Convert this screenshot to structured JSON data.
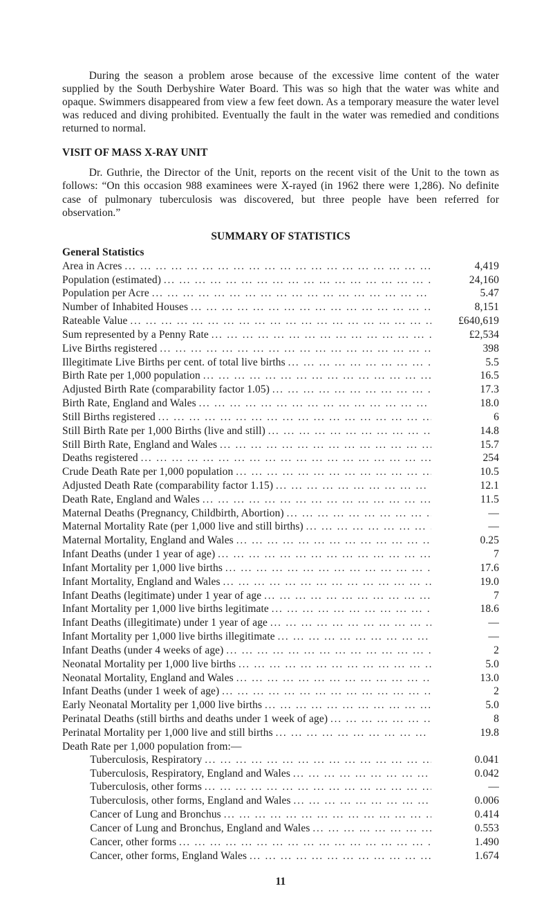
{
  "intro": "During the season a problem arose because of the excessive lime content of the water supplied by the South Derbyshire Water Board. This was so high that the water was white and opaque. Swimmers disappeared from view a few feet down. As a temporary measure the water level was reduced and diving prohibited. Eventually the fault in the water was remedied and conditions returned to normal.",
  "h_visit": "VISIT OF MASS X-RAY UNIT",
  "visit_para": "Dr. Guthrie, the Director of the Unit, reports on the recent visit of the Unit to the town as follows: “On this occasion 988 examinees were X-rayed (in 1962 there were 1,286). No definite case of pulmonary tuberculosis was discovered, but three people have been referred for observation.”",
  "h_summary": "SUMMARY OF STATISTICS",
  "h_general": "General Statistics",
  "deathrate_intro": "Death Rate per 1,000 population from:—",
  "pagenum": "11",
  "rows": [
    {
      "label": "Area in Acres",
      "val": "4,419"
    },
    {
      "label": "Population (estimated)",
      "val": "24,160"
    },
    {
      "label": "Population per Acre",
      "val": "5.47"
    },
    {
      "label": "Number of Inhabited Houses",
      "val": "8,151"
    },
    {
      "label": "Rateable Value",
      "val": "£640,619"
    },
    {
      "label": "Sum represented by a Penny Rate",
      "val": "£2,534"
    },
    {
      "label": "Live Births registered",
      "val": "398"
    },
    {
      "label": "Illegitimate Live Births per cent. of total live births",
      "val": "5.5"
    },
    {
      "label": "Birth Rate per 1,000 population",
      "val": "16.5"
    },
    {
      "label": "Adjusted Birth Rate (comparability factor 1.05)",
      "val": "17.3"
    },
    {
      "label": "Birth Rate, England and Wales",
      "val": "18.0"
    },
    {
      "label": "Still Births registered",
      "val": "6"
    },
    {
      "label": "Still Birth Rate per 1,000 Births (live and still)",
      "val": "14.8"
    },
    {
      "label": "Still Birth Rate, England and Wales",
      "val": "15.7"
    },
    {
      "label": "Deaths registered",
      "val": "254"
    },
    {
      "label": "Crude Death Rate per 1,000 population",
      "val": "10.5"
    },
    {
      "label": "Adjusted Death Rate (comparability factor 1.15)",
      "val": "12.1"
    },
    {
      "label": "Death Rate, England and Wales",
      "val": "11.5"
    },
    {
      "label": "Maternal Deaths (Pregnancy, Childbirth, Abortion)",
      "val": "—"
    },
    {
      "label": "Maternal Mortality Rate (per 1,000 live and still births)",
      "val": "—"
    },
    {
      "label": "Maternal Mortality, England and Wales",
      "val": "0.25"
    },
    {
      "label": "Infant Deaths (under 1 year of age)",
      "val": "7"
    },
    {
      "label": "Infant Mortality per 1,000 live births",
      "val": "17.6"
    },
    {
      "label": "Infant Mortality, England and Wales",
      "val": "19.0"
    },
    {
      "label": "Infant Deaths (legitimate) under 1 year of age",
      "val": "7"
    },
    {
      "label": "Infant Mortality per 1,000 live births legitimate",
      "val": "18.6"
    },
    {
      "label": "Infant Deaths (illegitimate) under 1 year of age",
      "val": "—"
    },
    {
      "label": "Infant Mortality per 1,000 live births illegitimate",
      "val": "—"
    },
    {
      "label": "Infant Deaths (under 4 weeks of age)",
      "val": "2"
    },
    {
      "label": "Neonatal Mortality per 1,000 live births",
      "val": "5.0"
    },
    {
      "label": "Neonatal Mortality, England and Wales",
      "val": "13.0"
    },
    {
      "label": "Infant Deaths (under 1 week of age)",
      "val": "2"
    },
    {
      "label": "Early Neonatal Mortality per 1,000 live births",
      "val": "5.0"
    },
    {
      "label": "Perinatal Deaths (still births and deaths under 1 week of age)",
      "val": "8"
    },
    {
      "label": "Perinatal Mortality per 1,000 live and still births",
      "val": "19.8"
    }
  ],
  "subrows": [
    {
      "label": "Tuberculosis, Respiratory",
      "val": "0.041"
    },
    {
      "label": "Tuberculosis, Respiratory, England and Wales",
      "val": "0.042"
    },
    {
      "label": "Tuberculosis, other forms",
      "val": "—"
    },
    {
      "label": "Tuberculosis, other forms, England and Wales",
      "val": "0.006"
    },
    {
      "label": "Cancer of Lung and Bronchus",
      "val": "0.414"
    },
    {
      "label": "Cancer of Lung and Bronchus, England and Wales",
      "val": "0.553"
    },
    {
      "label": "Cancer, other forms",
      "val": "1.490"
    },
    {
      "label": "Cancer, other forms, England Wales",
      "val": "1.674"
    }
  ]
}
